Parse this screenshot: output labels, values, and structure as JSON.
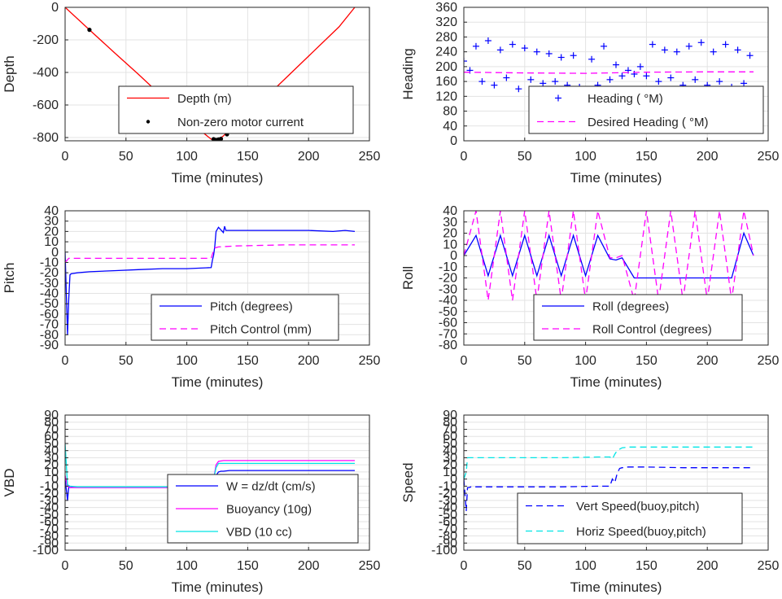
{
  "chart_data": [
    {
      "type": "line",
      "xlabel": "Time (minutes)",
      "ylabel": "Depth",
      "xlim": [
        0,
        250
      ],
      "ylim": [
        -820,
        0
      ],
      "xticks": [
        0,
        50,
        100,
        150,
        200,
        250
      ],
      "yticks": [
        -800,
        -600,
        -400,
        -200,
        0
      ],
      "grid": true,
      "legend_position": "lower-right",
      "series": [
        {
          "name": "Depth (m)",
          "color": "#ff0000",
          "style": "solid",
          "marker": "none",
          "x": [
            0,
            20,
            40,
            60,
            80,
            100,
            120,
            125,
            130,
            150,
            175,
            200,
            225,
            238
          ],
          "y": [
            0,
            -138,
            -275,
            -410,
            -550,
            -690,
            -810,
            -815,
            -790,
            -650,
            -480,
            -300,
            -120,
            0
          ]
        },
        {
          "name": "Non-zero motor current",
          "color": "#000000",
          "style": "none",
          "marker": "dot",
          "x": [
            20,
            122,
            124,
            126,
            128,
            133
          ],
          "y": [
            -138,
            -810,
            -815,
            -812,
            -808,
            -780
          ]
        }
      ]
    },
    {
      "type": "line",
      "xlabel": "Time (minutes)",
      "ylabel": "Heading",
      "xlim": [
        0,
        250
      ],
      "ylim": [
        0,
        360
      ],
      "xticks": [
        0,
        50,
        100,
        150,
        200,
        250
      ],
      "yticks": [
        0,
        40,
        80,
        120,
        160,
        200,
        240,
        280,
        320,
        360
      ],
      "grid": true,
      "legend_position": "lower-right",
      "series": [
        {
          "name": "Heading ( °M)",
          "color": "#0000ff",
          "style": "none",
          "marker": "plus",
          "x": [
            0,
            5,
            10,
            15,
            20,
            25,
            30,
            35,
            40,
            45,
            50,
            55,
            60,
            65,
            70,
            75,
            80,
            85,
            90,
            95,
            100,
            105,
            110,
            115,
            120,
            125,
            130,
            135,
            140,
            145,
            150,
            155,
            160,
            165,
            170,
            175,
            180,
            185,
            190,
            195,
            200,
            205,
            210,
            215,
            220,
            225,
            230,
            235,
            238
          ],
          "y": [
            215,
            190,
            255,
            160,
            270,
            150,
            245,
            170,
            260,
            140,
            250,
            165,
            240,
            155,
            235,
            160,
            225,
            150,
            230,
            145,
            120,
            220,
            150,
            255,
            165,
            205,
            175,
            190,
            180,
            200,
            175,
            260,
            160,
            245,
            170,
            240,
            150,
            255,
            165,
            265,
            150,
            240,
            160,
            260,
            145,
            245,
            155,
            230,
            135
          ]
        },
        {
          "name": "Desired Heading ( °M)",
          "color": "#ff00ff",
          "style": "dashed",
          "marker": "none",
          "x": [
            0,
            50,
            100,
            150,
            200,
            238
          ],
          "y": [
            185,
            183,
            182,
            185,
            186,
            186
          ]
        }
      ]
    },
    {
      "type": "line",
      "xlabel": "Time (minutes)",
      "ylabel": "Pitch",
      "xlim": [
        0,
        250
      ],
      "ylim": [
        -90,
        40
      ],
      "xticks": [
        0,
        50,
        100,
        150,
        200,
        250
      ],
      "yticks": [
        -90,
        -80,
        -70,
        -60,
        -50,
        -40,
        -30,
        -20,
        -10,
        0,
        10,
        20,
        30,
        40
      ],
      "grid": true,
      "legend_position": "lower-right",
      "series": [
        {
          "name": "Pitch (degrees)",
          "color": "#0000ff",
          "style": "solid",
          "marker": "none",
          "x": [
            0,
            2,
            3,
            4,
            5,
            10,
            20,
            40,
            60,
            80,
            100,
            120,
            121,
            122,
            123,
            124,
            126,
            130,
            131,
            132,
            140,
            160,
            180,
            200,
            220,
            230,
            238
          ],
          "y": [
            0,
            -80,
            -45,
            -22,
            -21,
            -20,
            -19,
            -18,
            -17,
            -16,
            -16,
            -15,
            -8,
            -3,
            6,
            20,
            24,
            19,
            25,
            21,
            21,
            21,
            21,
            21,
            20,
            21,
            20
          ]
        },
        {
          "name": "Pitch Control (mm)",
          "color": "#ff00ff",
          "style": "dashed",
          "marker": "none",
          "x": [
            0,
            3,
            10,
            60,
            120,
            121,
            123,
            126,
            140,
            180,
            238
          ],
          "y": [
            -10,
            -6,
            -6,
            -6,
            -6,
            -2,
            4,
            5,
            6,
            7,
            7
          ]
        }
      ]
    },
    {
      "type": "line",
      "xlabel": "Time (minutes)",
      "ylabel": "Roll",
      "xlim": [
        0,
        250
      ],
      "ylim": [
        -80,
        40
      ],
      "xticks": [
        0,
        50,
        100,
        150,
        200,
        250
      ],
      "yticks": [
        -80,
        -70,
        -60,
        -50,
        -40,
        -30,
        -20,
        -10,
        0,
        10,
        20,
        30,
        40
      ],
      "grid": true,
      "legend_position": "lower-right",
      "series": [
        {
          "name": "Roll (degrees)",
          "color": "#0000ff",
          "style": "solid",
          "marker": "none",
          "x": [
            0,
            10,
            20,
            30,
            40,
            50,
            60,
            70,
            80,
            90,
            100,
            110,
            120,
            125,
            130,
            140,
            150,
            160,
            170,
            180,
            190,
            200,
            210,
            220,
            230,
            238
          ],
          "y": [
            0,
            18,
            -18,
            18,
            -18,
            18,
            -18,
            18,
            -18,
            18,
            -18,
            18,
            -3,
            -4,
            -2,
            -20,
            -20,
            -20,
            -20,
            -20,
            -20,
            -20,
            -20,
            -20,
            20,
            0
          ]
        },
        {
          "name": "Roll Control (degrees)",
          "color": "#ff00ff",
          "style": "dashed",
          "marker": "none",
          "x": [
            0,
            10,
            20,
            30,
            40,
            50,
            60,
            70,
            80,
            90,
            100,
            110,
            120,
            125,
            130,
            140,
            150,
            160,
            170,
            180,
            190,
            200,
            210,
            220,
            230,
            238
          ],
          "y": [
            0,
            40,
            -40,
            40,
            -40,
            40,
            -40,
            40,
            -40,
            40,
            -40,
            40,
            -2,
            -2,
            0,
            -40,
            40,
            -40,
            40,
            -40,
            40,
            -40,
            40,
            -40,
            40,
            0
          ]
        }
      ]
    },
    {
      "type": "line",
      "xlabel": "Time (minutes)",
      "ylabel": "VBD",
      "xlim": [
        0,
        250
      ],
      "ylim": [
        -100,
        90
      ],
      "xticks": [
        0,
        50,
        100,
        150,
        200,
        250
      ],
      "yticks": [
        -100,
        -90,
        -80,
        -70,
        -60,
        -50,
        -40,
        -30,
        -20,
        -10,
        0,
        10,
        20,
        30,
        40,
        50,
        60,
        70,
        80,
        90
      ],
      "grid": true,
      "legend_position": "lower-right",
      "series": [
        {
          "name": "W = dz/dt (cm/s)",
          "color": "#0000ff",
          "style": "solid",
          "marker": "none",
          "x": [
            0,
            2,
            3,
            4,
            6,
            20,
            50,
            80,
            110,
            120,
            122,
            124,
            126,
            128,
            130,
            135,
            150,
            180,
            210,
            238
          ],
          "y": [
            0,
            -30,
            -10,
            -12,
            -11,
            -11,
            -11,
            -11,
            -11,
            -11,
            -5,
            5,
            10,
            11,
            11,
            12,
            12,
            12,
            12,
            12
          ]
        },
        {
          "name": "Buoyancy (10g)",
          "color": "#ff00ff",
          "style": "solid",
          "marker": "none",
          "x": [
            0,
            2,
            4,
            10,
            50,
            100,
            120,
            122,
            124,
            126,
            130,
            150,
            200,
            238
          ],
          "y": [
            5,
            -10,
            -12,
            -12,
            -12,
            -12,
            -12,
            0,
            20,
            25,
            26,
            26,
            26,
            26
          ]
        },
        {
          "name": "VBD (10 cc)",
          "color": "#00e5e5",
          "style": "solid",
          "marker": "none",
          "x": [
            0,
            1,
            2,
            4,
            10,
            50,
            100,
            120,
            122,
            124,
            126,
            130,
            150,
            200,
            238
          ],
          "y": [
            50,
            20,
            -8,
            -10,
            -11,
            -11,
            -11,
            -11,
            0,
            16,
            22,
            22,
            22,
            22,
            22
          ]
        }
      ]
    },
    {
      "type": "line",
      "xlabel": "Time (minutes)",
      "ylabel": "Speed",
      "xlim": [
        0,
        250
      ],
      "ylim": [
        -100,
        90
      ],
      "xticks": [
        0,
        50,
        100,
        150,
        200,
        250
      ],
      "yticks": [
        -100,
        -90,
        -80,
        -70,
        -60,
        -50,
        -40,
        -30,
        -20,
        -10,
        0,
        10,
        20,
        30,
        40,
        50,
        60,
        70,
        80,
        90
      ],
      "grid": true,
      "legend_position": "lower-right",
      "series": [
        {
          "name": "Vert Speed(buoy,pitch)",
          "color": "#0000ff",
          "style": "dashed",
          "marker": "none",
          "x": [
            0,
            2,
            3,
            4,
            6,
            20,
            50,
            80,
            110,
            120,
            122,
            124,
            126,
            128,
            130,
            135,
            150,
            180,
            210,
            238
          ],
          "y": [
            0,
            -45,
            -12,
            -12,
            -11,
            -11,
            -11,
            -11,
            -10,
            -10,
            0,
            -5,
            8,
            15,
            16,
            17,
            17,
            16,
            16,
            16
          ]
        },
        {
          "name": "Horiz Speed(buoy,pitch)",
          "color": "#00e5e5",
          "style": "dashed",
          "marker": "none",
          "x": [
            0,
            2,
            3,
            4,
            6,
            20,
            50,
            80,
            110,
            120,
            122,
            124,
            126,
            128,
            130,
            135,
            150,
            180,
            210,
            238
          ],
          "y": [
            0,
            10,
            30,
            30,
            30,
            30,
            30,
            30,
            31,
            31,
            28,
            35,
            40,
            42,
            44,
            45,
            45,
            45,
            45,
            45
          ]
        }
      ]
    }
  ]
}
